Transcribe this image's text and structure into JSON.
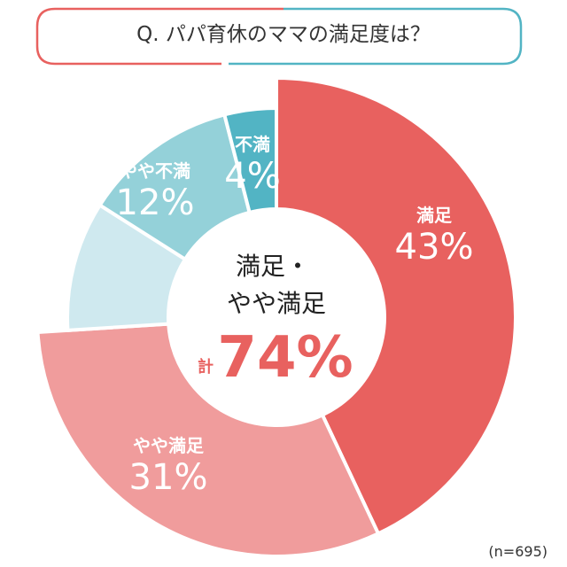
{
  "chart_data": {
    "type": "pie",
    "variant": "donut",
    "title": "Q. パパ育休のママの満足度は？",
    "slices": [
      {
        "label": "満足",
        "value": 43,
        "value_label": "43%",
        "color": "#e8615f"
      },
      {
        "label": "やや満足",
        "value": 31,
        "value_label": "31%",
        "color": "#f09c9c"
      },
      {
        "label": "",
        "value": 10,
        "value_label": "",
        "color": "#cfe9ef"
      },
      {
        "label": "やや不満",
        "value": 12,
        "value_label": "12%",
        "color": "#94d1d9"
      },
      {
        "label": "不満",
        "value": 4,
        "value_label": "4%",
        "color": "#52b4c4"
      }
    ],
    "center": {
      "line1": "満足・",
      "line2": "やや満足",
      "prefix": "計",
      "total": "74%"
    },
    "note": "(n=695)"
  }
}
